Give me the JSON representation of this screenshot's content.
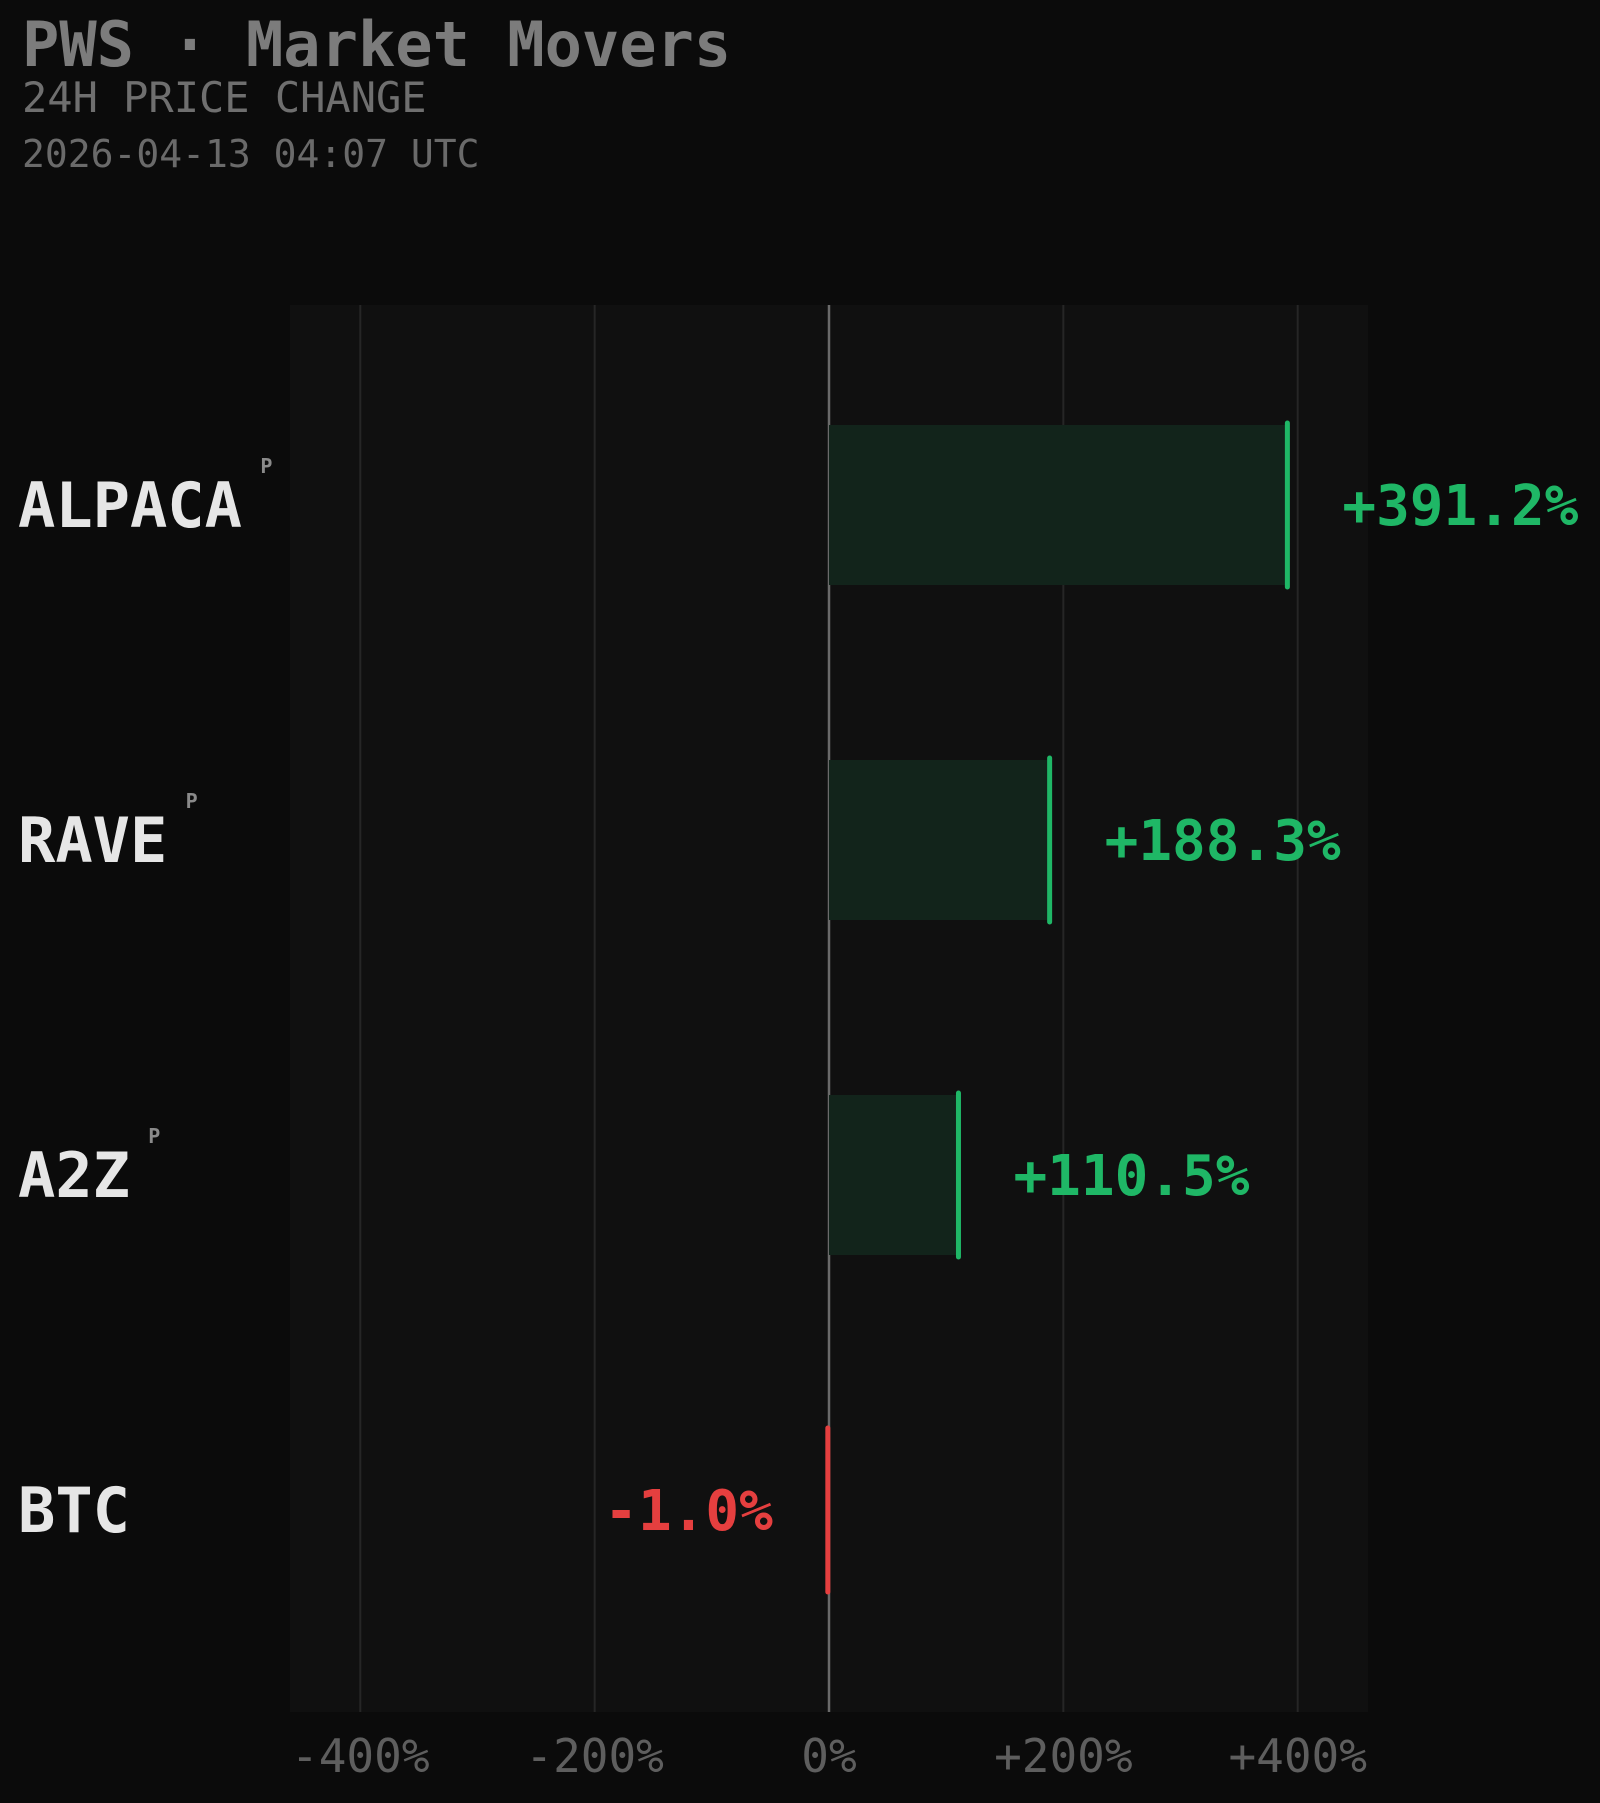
{
  "header": {
    "title": "PWS · Market Movers",
    "subtitle": "24H PRICE CHANGE",
    "timestamp": "2026-04-13 04:07 UTC"
  },
  "colors": {
    "background": "#0b0b0b",
    "plot_background": "#101010",
    "positive": "#1fb766",
    "positive_fill": "#12241b",
    "negative": "#e53f3f",
    "grid": "#262626",
    "zero_line": "#6a6a6a",
    "label": "#e6e6e6",
    "tick": "#5e5e5e"
  },
  "chart_data": {
    "type": "bar",
    "orientation": "horizontal",
    "categories": [
      "ALPACA",
      "RAVE",
      "A2Z",
      "BTC"
    ],
    "category_badges": [
      "P",
      "P",
      "P",
      ""
    ],
    "values": [
      391.2,
      188.3,
      110.5,
      -1.0
    ],
    "value_labels": [
      "+391.2%",
      "+188.3%",
      "+110.5%",
      "-1.0%"
    ],
    "xlim": [
      -460,
      460
    ],
    "x_ticks": [
      -400,
      -200,
      0,
      200,
      400
    ],
    "x_tick_labels": [
      "-400%",
      "-200%",
      "0%",
      "+200%",
      "+400%"
    ],
    "grid": true
  }
}
